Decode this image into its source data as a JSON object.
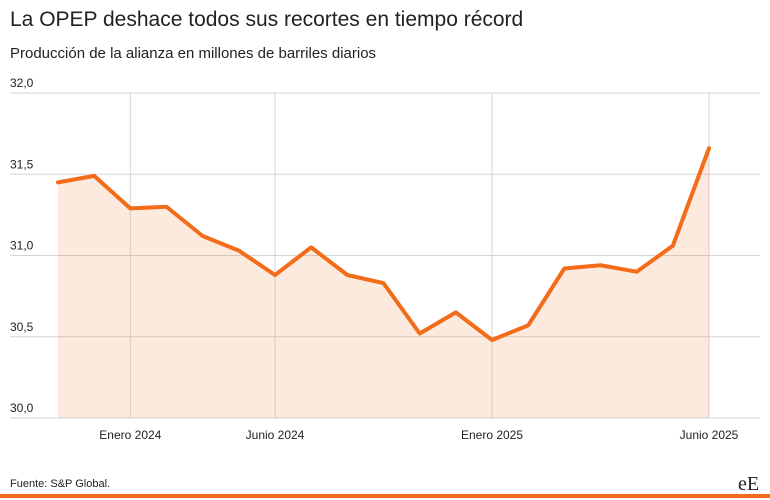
{
  "chart_data": {
    "type": "line",
    "title": "La OPEP deshace todos sus recortes en tiempo récord",
    "subtitle": "Producción de la alianza en millones de barriles diarios",
    "source": "Fuente: S&P Global.",
    "logo": "eE",
    "categories": [
      null,
      null,
      "Enero 2024",
      null,
      null,
      null,
      "Junio 2024",
      null,
      null,
      null,
      null,
      null,
      "Enero 2025",
      null,
      null,
      null,
      null,
      null,
      "Junio 2025"
    ],
    "series": [
      {
        "name": "Producción",
        "color": "#f26c1a",
        "values": [
          31.45,
          31.49,
          31.29,
          31.3,
          31.12,
          31.03,
          30.88,
          31.05,
          30.88,
          30.83,
          30.52,
          30.65,
          30.48,
          30.57,
          30.92,
          30.94,
          30.9,
          31.06,
          31.66
        ]
      }
    ],
    "ylim": [
      30.0,
      32.0
    ],
    "yticks": [
      {
        "value": 30.0,
        "label": "30,0"
      },
      {
        "value": 30.5,
        "label": "30,5"
      },
      {
        "value": 31.0,
        "label": "31,0"
      },
      {
        "value": 31.5,
        "label": "31,5"
      },
      {
        "value": 32.0,
        "label": "32,0"
      }
    ],
    "grid": true
  }
}
